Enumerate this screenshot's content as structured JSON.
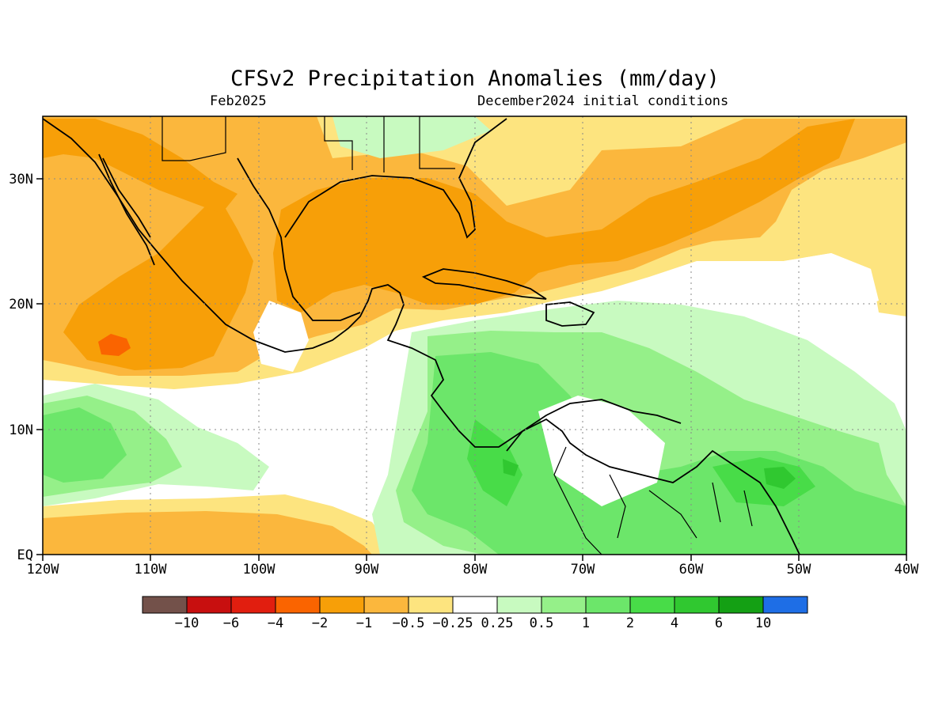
{
  "title": "CFSv2 Precipitation Anomalies (mm/day)",
  "subtitle_left": "Feb2025",
  "subtitle_right": "December2024 initial conditions",
  "axes": {
    "x_ticks": [
      "120W",
      "110W",
      "100W",
      "90W",
      "80W",
      "70W",
      "60W",
      "50W",
      "40W"
    ],
    "y_ticks": [
      "EQ",
      "10N",
      "20N",
      "30N"
    ]
  },
  "colorbar": {
    "colors": [
      "#73514a",
      "#c80f0f",
      "#e11e0f",
      "#fa6400",
      "#f79f08",
      "#fbb73d",
      "#fde47f",
      "#ffffff",
      "#c8fac0",
      "#95f089",
      "#6ce66a",
      "#48dc48",
      "#30c830",
      "#14a014",
      "#1e6ee6"
    ],
    "labels": [
      "−10",
      "−6",
      "−4",
      "−2",
      "−1",
      "−0.5",
      "−0.25",
      "0.25",
      "0.5",
      "1",
      "2",
      "4",
      "6",
      "10"
    ]
  },
  "colors": {
    "strong_negative": "#f79f08",
    "moderate_negative": "#fbb73d",
    "weak_negative": "#fde47f",
    "neutral": "#ffffff",
    "weak_positive": "#c8fac0",
    "moderate_positive": "#95f089",
    "positive": "#6ce66a",
    "strong_positive": "#48dc48",
    "very_strong_positive": "#30c830",
    "extreme_negative": "#fa6400"
  }
}
